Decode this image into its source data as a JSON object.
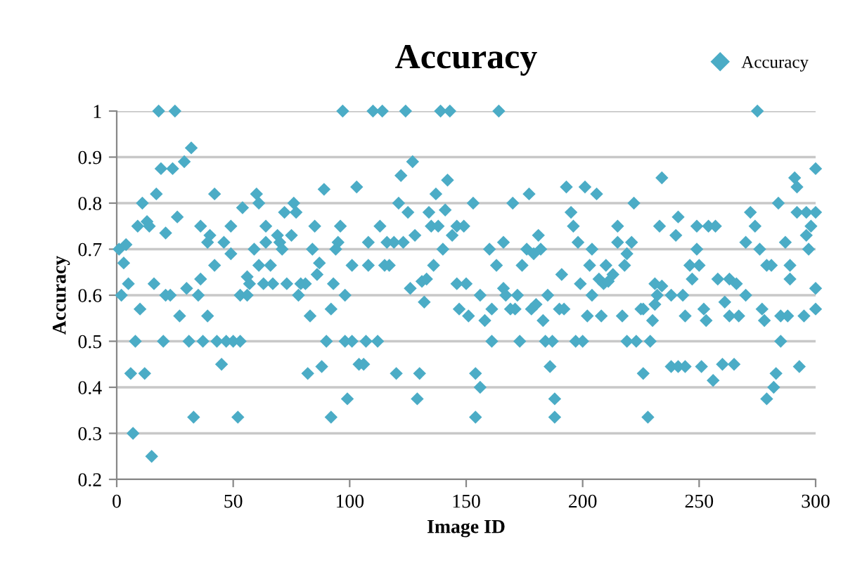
{
  "chart_data": {
    "type": "scatter",
    "title": "Accuracy",
    "xlabel": "Image ID",
    "ylabel": "Accuracy",
    "xlim": [
      0,
      300
    ],
    "xticks": [
      0,
      50,
      100,
      150,
      200,
      250,
      300
    ],
    "ylim": [
      0.2,
      1
    ],
    "yticks": [
      {
        "value": 0.2,
        "label": "0.2"
      },
      {
        "value": 0.3,
        "label": "0.3"
      },
      {
        "value": 0.4,
        "label": "0.4"
      },
      {
        "value": 0.5,
        "label": "0.5"
      },
      {
        "value": 0.6,
        "label": "0.6"
      },
      {
        "value": 0.7,
        "label": "0.7"
      },
      {
        "value": 0.8,
        "label": "0.8"
      },
      {
        "value": 0.9,
        "label": "0.9"
      },
      {
        "value": 1,
        "label": "1"
      }
    ],
    "grid": "y",
    "legend": "top right",
    "marker": "diamond",
    "series": [
      {
        "name": "Accuracy",
        "color": "#4bacc6",
        "x": [
          18,
          25,
          97,
          32,
          19,
          24,
          29,
          89,
          11,
          17,
          42,
          60,
          61,
          76,
          13,
          9,
          14,
          26,
          21,
          36,
          54,
          64,
          72,
          77,
          85,
          96,
          49,
          1,
          4,
          3,
          40,
          39,
          46,
          49,
          59,
          64,
          69,
          70,
          71,
          75,
          84,
          95,
          94,
          42,
          61,
          66,
          87,
          86,
          36,
          56,
          57,
          5,
          16,
          30,
          63,
          67,
          73,
          79,
          81,
          93,
          2,
          21,
          23,
          35,
          53,
          56,
          78,
          98,
          10,
          27,
          39,
          83,
          92,
          8,
          20,
          31,
          37,
          43,
          47,
          50,
          53,
          90,
          98,
          45,
          6,
          12,
          82,
          88,
          33,
          52,
          92,
          99,
          7,
          15,
          110,
          114,
          124,
          139,
          143,
          164,
          127,
          122,
          103,
          142,
          137,
          121,
          125,
          134,
          141,
          153,
          170,
          177,
          193,
          195,
          196,
          113,
          135,
          138,
          146,
          149,
          108,
          116,
          119,
          123,
          128,
          144,
          140,
          160,
          166,
          176,
          179,
          181,
          182,
          198,
          101,
          108,
          115,
          117,
          136,
          163,
          174,
          191,
          126,
          131,
          133,
          146,
          150,
          166,
          156,
          167,
          172,
          185,
          199,
          132,
          147,
          151,
          158,
          161,
          169,
          171,
          178,
          180,
          183,
          190,
          192,
          101,
          107,
          112,
          161,
          173,
          184,
          187,
          197,
          104,
          106,
          120,
          130,
          154,
          156,
          186,
          129,
          188,
          154,
          188,
          275,
          300,
          234,
          291,
          292,
          201,
          206,
          222,
          284,
          215,
          233,
          241,
          249,
          254,
          257,
          272,
          274,
          292,
          296,
          300,
          240,
          215,
          221,
          204,
          219,
          249,
          270,
          276,
          287,
          296,
          297,
          298,
          203,
          210,
          218,
          246,
          250,
          279,
          281,
          289,
          207,
          209,
          211,
          213,
          231,
          234,
          238,
          243,
          247,
          258,
          263,
          266,
          270,
          289,
          300,
          204,
          232,
          231,
          202,
          208,
          217,
          225,
          226,
          230,
          244,
          252,
          253,
          261,
          263,
          267,
          277,
          278,
          285,
          288,
          295,
          300,
          200,
          219,
          223,
          229,
          285,
          238,
          241,
          244,
          251,
          260,
          265,
          293,
          256,
          226,
          283,
          282,
          279,
          228
        ],
        "values": [
          1.0,
          1.0,
          1.0,
          0.92,
          0.875,
          0.875,
          0.89,
          0.83,
          0.8,
          0.82,
          0.82,
          0.82,
          0.8,
          0.8,
          0.76,
          0.75,
          0.75,
          0.77,
          0.735,
          0.75,
          0.79,
          0.75,
          0.78,
          0.78,
          0.75,
          0.75,
          0.75,
          0.7,
          0.71,
          0.67,
          0.73,
          0.715,
          0.715,
          0.69,
          0.7,
          0.715,
          0.73,
          0.715,
          0.7,
          0.73,
          0.7,
          0.715,
          0.7,
          0.665,
          0.665,
          0.665,
          0.67,
          0.645,
          0.635,
          0.64,
          0.625,
          0.625,
          0.625,
          0.615,
          0.625,
          0.625,
          0.625,
          0.625,
          0.625,
          0.625,
          0.6,
          0.6,
          0.6,
          0.6,
          0.6,
          0.6,
          0.6,
          0.6,
          0.57,
          0.555,
          0.555,
          0.555,
          0.57,
          0.5,
          0.5,
          0.5,
          0.5,
          0.5,
          0.5,
          0.5,
          0.5,
          0.5,
          0.5,
          0.45,
          0.43,
          0.43,
          0.43,
          0.445,
          0.335,
          0.335,
          0.335,
          0.375,
          0.3,
          0.25,
          1.0,
          1.0,
          1.0,
          1.0,
          1.0,
          1.0,
          0.89,
          0.86,
          0.835,
          0.85,
          0.82,
          0.8,
          0.78,
          0.78,
          0.785,
          0.8,
          0.8,
          0.82,
          0.835,
          0.78,
          0.75,
          0.75,
          0.75,
          0.75,
          0.75,
          0.75,
          0.715,
          0.715,
          0.715,
          0.715,
          0.73,
          0.73,
          0.7,
          0.7,
          0.715,
          0.7,
          0.69,
          0.73,
          0.7,
          0.715,
          0.665,
          0.665,
          0.665,
          0.665,
          0.665,
          0.665,
          0.665,
          0.645,
          0.615,
          0.63,
          0.635,
          0.625,
          0.625,
          0.615,
          0.6,
          0.6,
          0.6,
          0.6,
          0.625,
          0.585,
          0.57,
          0.555,
          0.545,
          0.57,
          0.57,
          0.57,
          0.57,
          0.58,
          0.545,
          0.57,
          0.57,
          0.5,
          0.5,
          0.5,
          0.5,
          0.5,
          0.5,
          0.5,
          0.5,
          0.45,
          0.45,
          0.43,
          0.43,
          0.43,
          0.4,
          0.445,
          0.375,
          0.375,
          0.335,
          0.335,
          1.0,
          0.875,
          0.855,
          0.855,
          0.835,
          0.835,
          0.82,
          0.8,
          0.8,
          0.75,
          0.75,
          0.77,
          0.75,
          0.75,
          0.75,
          0.78,
          0.75,
          0.78,
          0.78,
          0.78,
          0.73,
          0.715,
          0.715,
          0.7,
          0.69,
          0.7,
          0.715,
          0.7,
          0.715,
          0.73,
          0.7,
          0.75,
          0.665,
          0.665,
          0.665,
          0.665,
          0.665,
          0.665,
          0.665,
          0.665,
          0.635,
          0.625,
          0.63,
          0.645,
          0.625,
          0.62,
          0.6,
          0.6,
          0.635,
          0.635,
          0.635,
          0.625,
          0.6,
          0.635,
          0.615,
          0.6,
          0.6,
          0.58,
          0.555,
          0.555,
          0.555,
          0.57,
          0.57,
          0.545,
          0.555,
          0.57,
          0.545,
          0.585,
          0.555,
          0.555,
          0.57,
          0.545,
          0.555,
          0.555,
          0.555,
          0.57,
          0.5,
          0.5,
          0.5,
          0.5,
          0.5,
          0.445,
          0.445,
          0.445,
          0.445,
          0.45,
          0.45,
          0.445,
          0.415,
          0.43,
          0.43,
          0.4,
          0.375,
          0.335
        ]
      }
    ]
  }
}
